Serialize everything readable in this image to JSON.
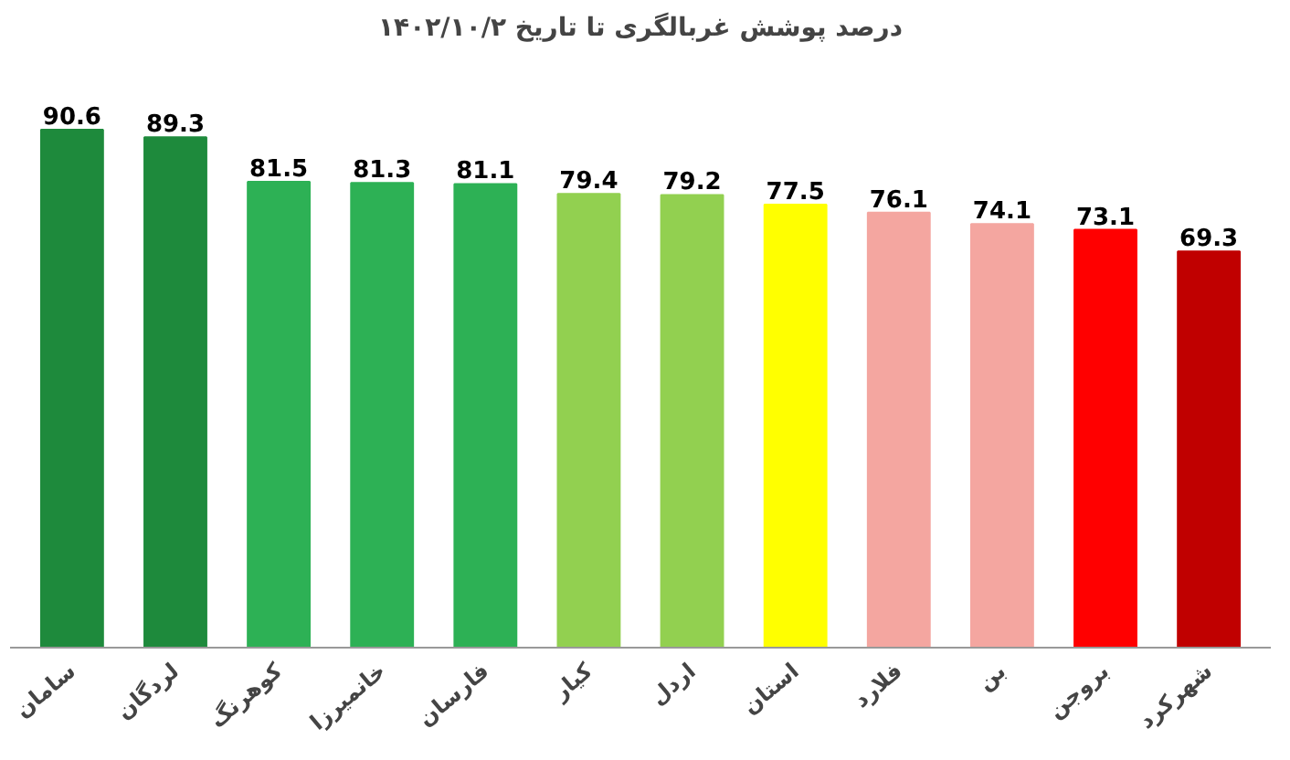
{
  "chart_data": {
    "type": "bar",
    "title": "درصد پوشش غربالگری تا تاریخ ۱۴۰۲/۱۰/۲",
    "categories": [
      "سامان",
      "لردگان",
      "کوهرنگ",
      "خانمیرزا",
      "فارسان",
      "کیار",
      "اردل",
      "استان",
      "فلارد",
      "بن",
      "بروجن",
      "شهرکرد"
    ],
    "values": [
      90.6,
      89.3,
      81.5,
      81.3,
      81.1,
      79.4,
      79.2,
      77.5,
      76.1,
      74.1,
      73.1,
      69.3
    ],
    "colors": [
      "#1e8a3c",
      "#1e8a3c",
      "#2db155",
      "#2db155",
      "#2db155",
      "#92d050",
      "#92d050",
      "#ffff00",
      "#f4a6a0",
      "#f4a6a0",
      "#ff0000",
      "#c00000"
    ],
    "data_labels": true,
    "grid": false
  }
}
